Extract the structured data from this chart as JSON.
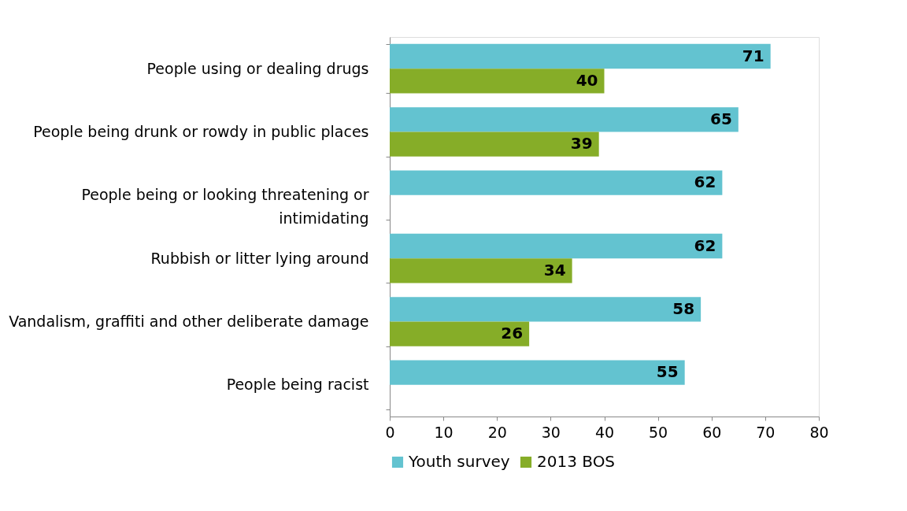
{
  "chart_data": {
    "type": "bar",
    "orientation": "horizontal",
    "categories": [
      "People using or dealing drugs",
      "People being drunk or rowdy in public places",
      "People being or looking threatening or intimidating",
      "Rubbish or litter lying around",
      "Vandalism, graffiti and other deliberate damage",
      "People being racist"
    ],
    "series": [
      {
        "name": "Youth survey",
        "color": "#63c3d0",
        "values": [
          71,
          65,
          62,
          62,
          58,
          55
        ]
      },
      {
        "name": "2013 BOS",
        "color": "#86ad28",
        "values": [
          40,
          39,
          null,
          34,
          26,
          null
        ]
      }
    ],
    "xlim": [
      0,
      80
    ],
    "xticks": [
      0,
      10,
      20,
      30,
      40,
      50,
      60,
      70,
      80
    ],
    "data_labels": true,
    "grid": false,
    "legend": "bottom"
  }
}
